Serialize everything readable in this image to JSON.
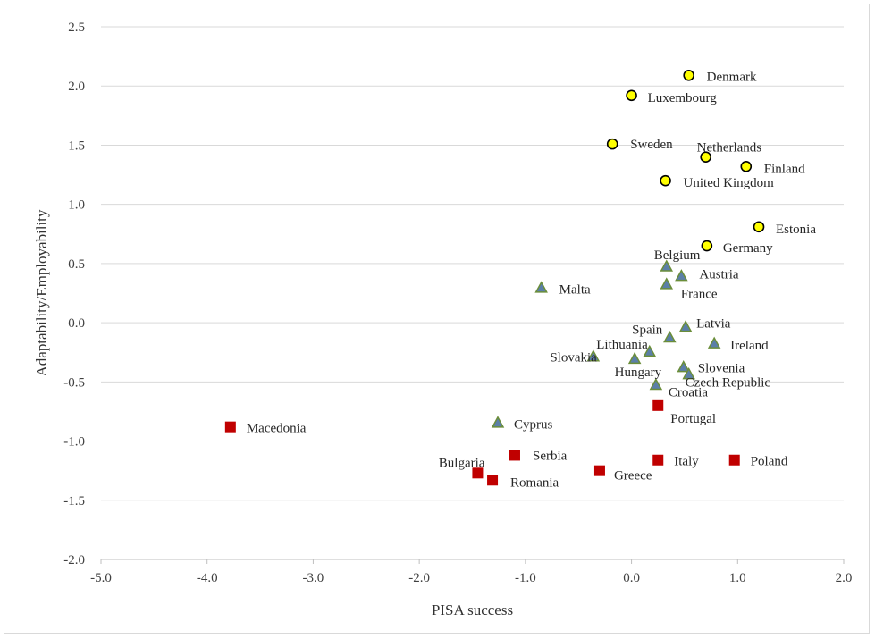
{
  "chart_data": {
    "type": "scatter",
    "xlabel": "PISA success",
    "ylabel": "Adaptability/Employability",
    "xlim": [
      -5.0,
      2.0
    ],
    "ylim": [
      -2.0,
      2.5
    ],
    "x_ticks": [
      "-5.0",
      "-4.0",
      "-3.0",
      "-2.0",
      "-1.0",
      "0.0",
      "1.0",
      "2.0"
    ],
    "y_ticks": [
      "2.5",
      "2.0",
      "1.5",
      "1.0",
      "0.5",
      "0.0",
      "-0.5",
      "-1.0",
      "-1.5",
      "-2.0"
    ],
    "grid": "horizontal",
    "legend": "none",
    "series": [
      {
        "marker": "circle",
        "color": "#ffff00",
        "edge_color": "#000000",
        "points": [
          {
            "label": "Denmark",
            "x": 0.54,
            "y": 2.09
          },
          {
            "label": "Luxembourg",
            "x": 0.0,
            "y": 1.92
          },
          {
            "label": "Sweden",
            "x": -0.18,
            "y": 1.51
          },
          {
            "label": "Netherlands",
            "x": 0.7,
            "y": 1.4
          },
          {
            "label": "Finland",
            "x": 1.08,
            "y": 1.32
          },
          {
            "label": "United Kingdom",
            "x": 0.32,
            "y": 1.2
          },
          {
            "label": "Estonia",
            "x": 1.2,
            "y": 0.81
          },
          {
            "label": "Germany",
            "x": 0.71,
            "y": 0.65
          }
        ]
      },
      {
        "marker": "triangle",
        "color": "#5b7fa8",
        "edge_color": "#6b8e3a",
        "points": [
          {
            "label": "Belgium",
            "x": 0.33,
            "y": 0.47
          },
          {
            "label": "Austria",
            "x": 0.47,
            "y": 0.39
          },
          {
            "label": "France",
            "x": 0.33,
            "y": 0.32
          },
          {
            "label": "Malta",
            "x": -0.85,
            "y": 0.29
          },
          {
            "label": "Latvia",
            "x": 0.51,
            "y": -0.04
          },
          {
            "label": "Spain",
            "x": 0.36,
            "y": -0.13
          },
          {
            "label": "Ireland",
            "x": 0.78,
            "y": -0.18
          },
          {
            "label": "Lithuania",
            "x": 0.17,
            "y": -0.25
          },
          {
            "label": "Slovakia",
            "x": -0.36,
            "y": -0.29
          },
          {
            "label": "Hungary",
            "x": 0.03,
            "y": -0.31
          },
          {
            "label": "Slovenia",
            "x": 0.49,
            "y": -0.38
          },
          {
            "label": "Czech Republic",
            "x": 0.54,
            "y": -0.44
          },
          {
            "label": "Croatia",
            "x": 0.23,
            "y": -0.53
          },
          {
            "label": "Cyprus",
            "x": -1.26,
            "y": -0.85
          }
        ]
      },
      {
        "marker": "square",
        "color": "#c00000",
        "edge_color": "#c00000",
        "points": [
          {
            "label": "Portugal",
            "x": 0.25,
            "y": -0.7
          },
          {
            "label": "Macedonia",
            "x": -3.78,
            "y": -0.88
          },
          {
            "label": "Serbia",
            "x": -1.1,
            "y": -1.12
          },
          {
            "label": "Italy",
            "x": 0.25,
            "y": -1.16
          },
          {
            "label": "Poland",
            "x": 0.97,
            "y": -1.16
          },
          {
            "label": "Greece",
            "x": -0.3,
            "y": -1.25
          },
          {
            "label": "Bulgaria",
            "x": -1.45,
            "y": -1.27
          },
          {
            "label": "Romania",
            "x": -1.31,
            "y": -1.33
          }
        ]
      }
    ]
  }
}
